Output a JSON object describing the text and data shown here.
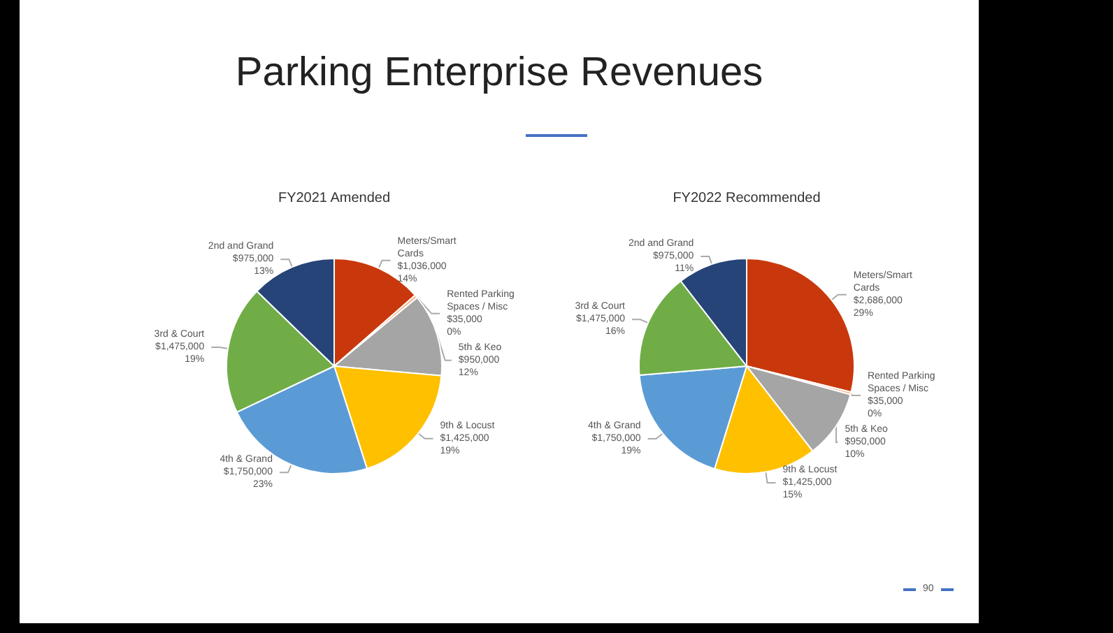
{
  "chart_data": [
    {
      "type": "other",
      "title": "Parking Enterprise Revenues",
      "annotations": [
        "90"
      ]
    },
    {
      "type": "pie",
      "title": "FY2021 Amended",
      "categories": [
        "Meters/Smart Cards",
        "Rented Parking Spaces / Misc",
        "5th & Keo",
        "9th & Locust",
        "4th & Grand",
        "3rd & Court",
        "2nd and Grand"
      ],
      "values": [
        1036000,
        35000,
        950000,
        1425000,
        1750000,
        1475000,
        975000
      ],
      "value_labels": [
        "$1,036,000\n14%",
        "$35,000\n0%",
        "$950,000\n12%",
        "$1,425,000\n19%",
        "$1,750,000\n23%",
        "$1,475,000\n19%",
        "$975,000\n13%"
      ],
      "colors": [
        "#c9380c",
        "#f4b183",
        "#a5a5a5",
        "#ffc000",
        "#5b9bd5",
        "#70ad47",
        "#264478"
      ]
    },
    {
      "type": "pie",
      "title": "FY2022 Recommended",
      "categories": [
        "Meters/Smart Cards",
        "Rented Parking Spaces / Misc",
        "5th & Keo",
        "9th & Locust",
        "4th & Grand",
        "3rd & Court",
        "2nd and Grand"
      ],
      "values": [
        2686000,
        35000,
        950000,
        1425000,
        1750000,
        1475000,
        975000
      ],
      "value_labels": [
        "$2,686,000\n29%",
        "$35,000\n0%",
        "$950,000\n10%",
        "$1,425,000\n15%",
        "$1,750,000\n19%",
        "$1,475,000\n16%",
        "$975,000\n11%"
      ],
      "colors": [
        "#c9380c",
        "#f4b183",
        "#a5a5a5",
        "#ffc000",
        "#5b9bd5",
        "#70ad47",
        "#264478"
      ]
    }
  ]
}
